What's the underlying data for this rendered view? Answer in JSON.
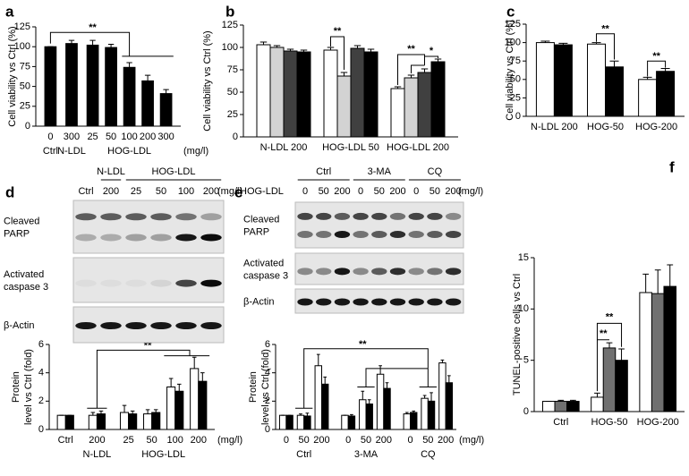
{
  "chart_data": [
    {
      "panel": "a",
      "type": "bar",
      "ylabel": "Cell viability vs Ctrl (%)",
      "groups": [
        {
          "name": "Ctrl",
          "categories": [
            "0"
          ]
        },
        {
          "name": "N-LDL",
          "categories": [
            "300"
          ]
        },
        {
          "name": "HOG-LDL",
          "categories": [
            "25",
            "50",
            "100",
            "200",
            "300"
          ]
        }
      ],
      "x_unit": "(mg/l)",
      "series": [
        {
          "color": "#000000",
          "values": [
            100,
            104,
            102,
            99,
            74,
            57,
            41
          ],
          "errors": [
            0,
            4,
            6,
            4,
            6,
            7,
            5
          ]
        }
      ],
      "ylim": [
        0,
        125
      ],
      "yticks": [
        0,
        25,
        50,
        75,
        100,
        125
      ],
      "annotations": [
        "**"
      ]
    },
    {
      "panel": "b",
      "type": "bar",
      "ylabel": "Cell viability vs Ctrl (%)",
      "categories": [
        "N-LDL 200",
        "HOG-LDL 50",
        "HOG-LDL 200"
      ],
      "series": [
        {
          "color": "#ffffff",
          "values": [
            103,
            97,
            54
          ],
          "errors": [
            3,
            3,
            2
          ]
        },
        {
          "color": "#d3d3d3",
          "values": [
            100,
            68,
            66
          ],
          "errors": [
            2,
            4,
            3
          ]
        },
        {
          "color": "#404040",
          "values": [
            96,
            99,
            72
          ],
          "errors": [
            2,
            3,
            4
          ]
        },
        {
          "color": "#000000",
          "values": [
            95,
            95,
            84
          ],
          "errors": [
            2,
            3,
            3
          ]
        }
      ],
      "ylim": [
        0,
        125
      ],
      "yticks": [
        0,
        25,
        50,
        75,
        100,
        125
      ],
      "annotations": [
        "**",
        "**",
        "*"
      ]
    },
    {
      "panel": "c",
      "type": "bar",
      "ylabel": "Cell viability vs Ctrl (%)",
      "categories": [
        "N-LDL 200",
        "HOG-50",
        "HOG-200"
      ],
      "series": [
        {
          "color": "#ffffff",
          "values": [
            100,
            98,
            50
          ],
          "errors": [
            2,
            2,
            3
          ]
        },
        {
          "color": "#000000",
          "values": [
            97,
            67,
            61
          ],
          "errors": [
            2,
            8,
            4
          ]
        }
      ],
      "ylim": [
        0,
        125
      ],
      "yticks": [
        0,
        25,
        50,
        75,
        100,
        125
      ],
      "annotations": [
        "**",
        "**"
      ]
    },
    {
      "type": "bar",
      "ylabel": [
        "Protein",
        "level vs Ctrl (fold)"
      ],
      "groups": [
        {
          "name": null,
          "categories": [
            "Ctrl"
          ]
        },
        {
          "name": "N-LDL",
          "categories": [
            "200"
          ]
        },
        {
          "name": "HOG-LDL",
          "categories": [
            "25",
            "50",
            "100",
            "200"
          ]
        }
      ],
      "x_unit": "(mg/l)",
      "series": [
        {
          "color": "#ffffff",
          "values": [
            1,
            1,
            1.2,
            1.1,
            3.0,
            4.3
          ],
          "errors": [
            0,
            0.2,
            0.5,
            0.3,
            0.6,
            0.8
          ]
        },
        {
          "color": "#000000",
          "values": [
            1,
            1.1,
            1.1,
            1.2,
            2.7,
            3.4
          ],
          "errors": [
            0,
            0.2,
            0.2,
            0.2,
            0.5,
            0.6
          ]
        }
      ],
      "ylim": [
        0,
        6
      ],
      "yticks": [
        0,
        2,
        4,
        6
      ],
      "annotations": [
        "**"
      ]
    },
    {
      "type": "bar",
      "ylabel": [
        "Protein",
        "level vs Ctrl (fold)"
      ],
      "groups": [
        {
          "name": "Ctrl",
          "categories": [
            "0",
            "50",
            "200"
          ]
        },
        {
          "name": "3-MA",
          "categories": [
            "0",
            "50",
            "200"
          ]
        },
        {
          "name": "CQ",
          "categories": [
            "0",
            "50",
            "200"
          ]
        }
      ],
      "x_unit": "(mg/l)",
      "series": [
        {
          "color": "#ffffff",
          "values": [
            1,
            1,
            4.5,
            1,
            2.1,
            3.9,
            1.1,
            2.2,
            4.7
          ],
          "errors": [
            0,
            0.1,
            0.8,
            0,
            0.6,
            0.6,
            0.1,
            0.2,
            0.2
          ]
        },
        {
          "color": "#000000",
          "values": [
            1,
            0.95,
            3.2,
            0.95,
            1.8,
            2.9,
            1.2,
            2.0,
            3.3
          ],
          "errors": [
            0,
            0.2,
            0.5,
            0.1,
            0.3,
            0.4,
            0.1,
            0.6,
            0.5
          ]
        }
      ],
      "ylim": [
        0,
        6
      ],
      "yticks": [
        0,
        2,
        4,
        6
      ],
      "annotations": [
        "**"
      ]
    },
    {
      "panel": "f",
      "type": "bar",
      "ylabel": "TUNEL-positive cells vs Ctrl",
      "categories": [
        "Ctrl",
        "HOG-50",
        "HOG-200"
      ],
      "series": [
        {
          "color": "#ffffff",
          "values": [
            1,
            1.4,
            11.6
          ],
          "errors": [
            0,
            0.4,
            1.8
          ]
        },
        {
          "color": "#707070",
          "values": [
            1,
            6.2,
            11.5
          ],
          "errors": [
            0.1,
            0.5,
            2.3
          ]
        },
        {
          "color": "#000000",
          "values": [
            1,
            5,
            12.2
          ],
          "errors": [
            0.1,
            1.1,
            2.1
          ]
        }
      ],
      "ylim": [
        0,
        15
      ],
      "yticks": [
        0,
        5,
        10,
        15
      ],
      "annotations": [
        "**",
        "**"
      ]
    }
  ],
  "blots": [
    {
      "panel": "d",
      "header_groups": [
        "N-LDL",
        "HOG-LDL"
      ],
      "lanes": [
        "Ctrl",
        "200",
        "25",
        "50",
        "100",
        "200"
      ],
      "unit": "(mg/l)",
      "rows": [
        [
          "Cleaved",
          "PARP"
        ],
        [
          "Activated",
          "caspase 3"
        ],
        [
          "β-Actin"
        ]
      ]
    },
    {
      "panel": "e",
      "header_groups": [
        "Ctrl",
        "3-MA",
        "CQ"
      ],
      "lane_label": "HOG-LDL",
      "lanes": [
        "0",
        "50",
        "200",
        "0",
        "50",
        "200",
        "0",
        "50",
        "200"
      ],
      "unit": "(mg/l)",
      "rows": [
        [
          "Cleaved",
          "PARP"
        ],
        [
          "Activated",
          "caspase 3"
        ],
        [
          "β-Actin"
        ]
      ]
    }
  ]
}
